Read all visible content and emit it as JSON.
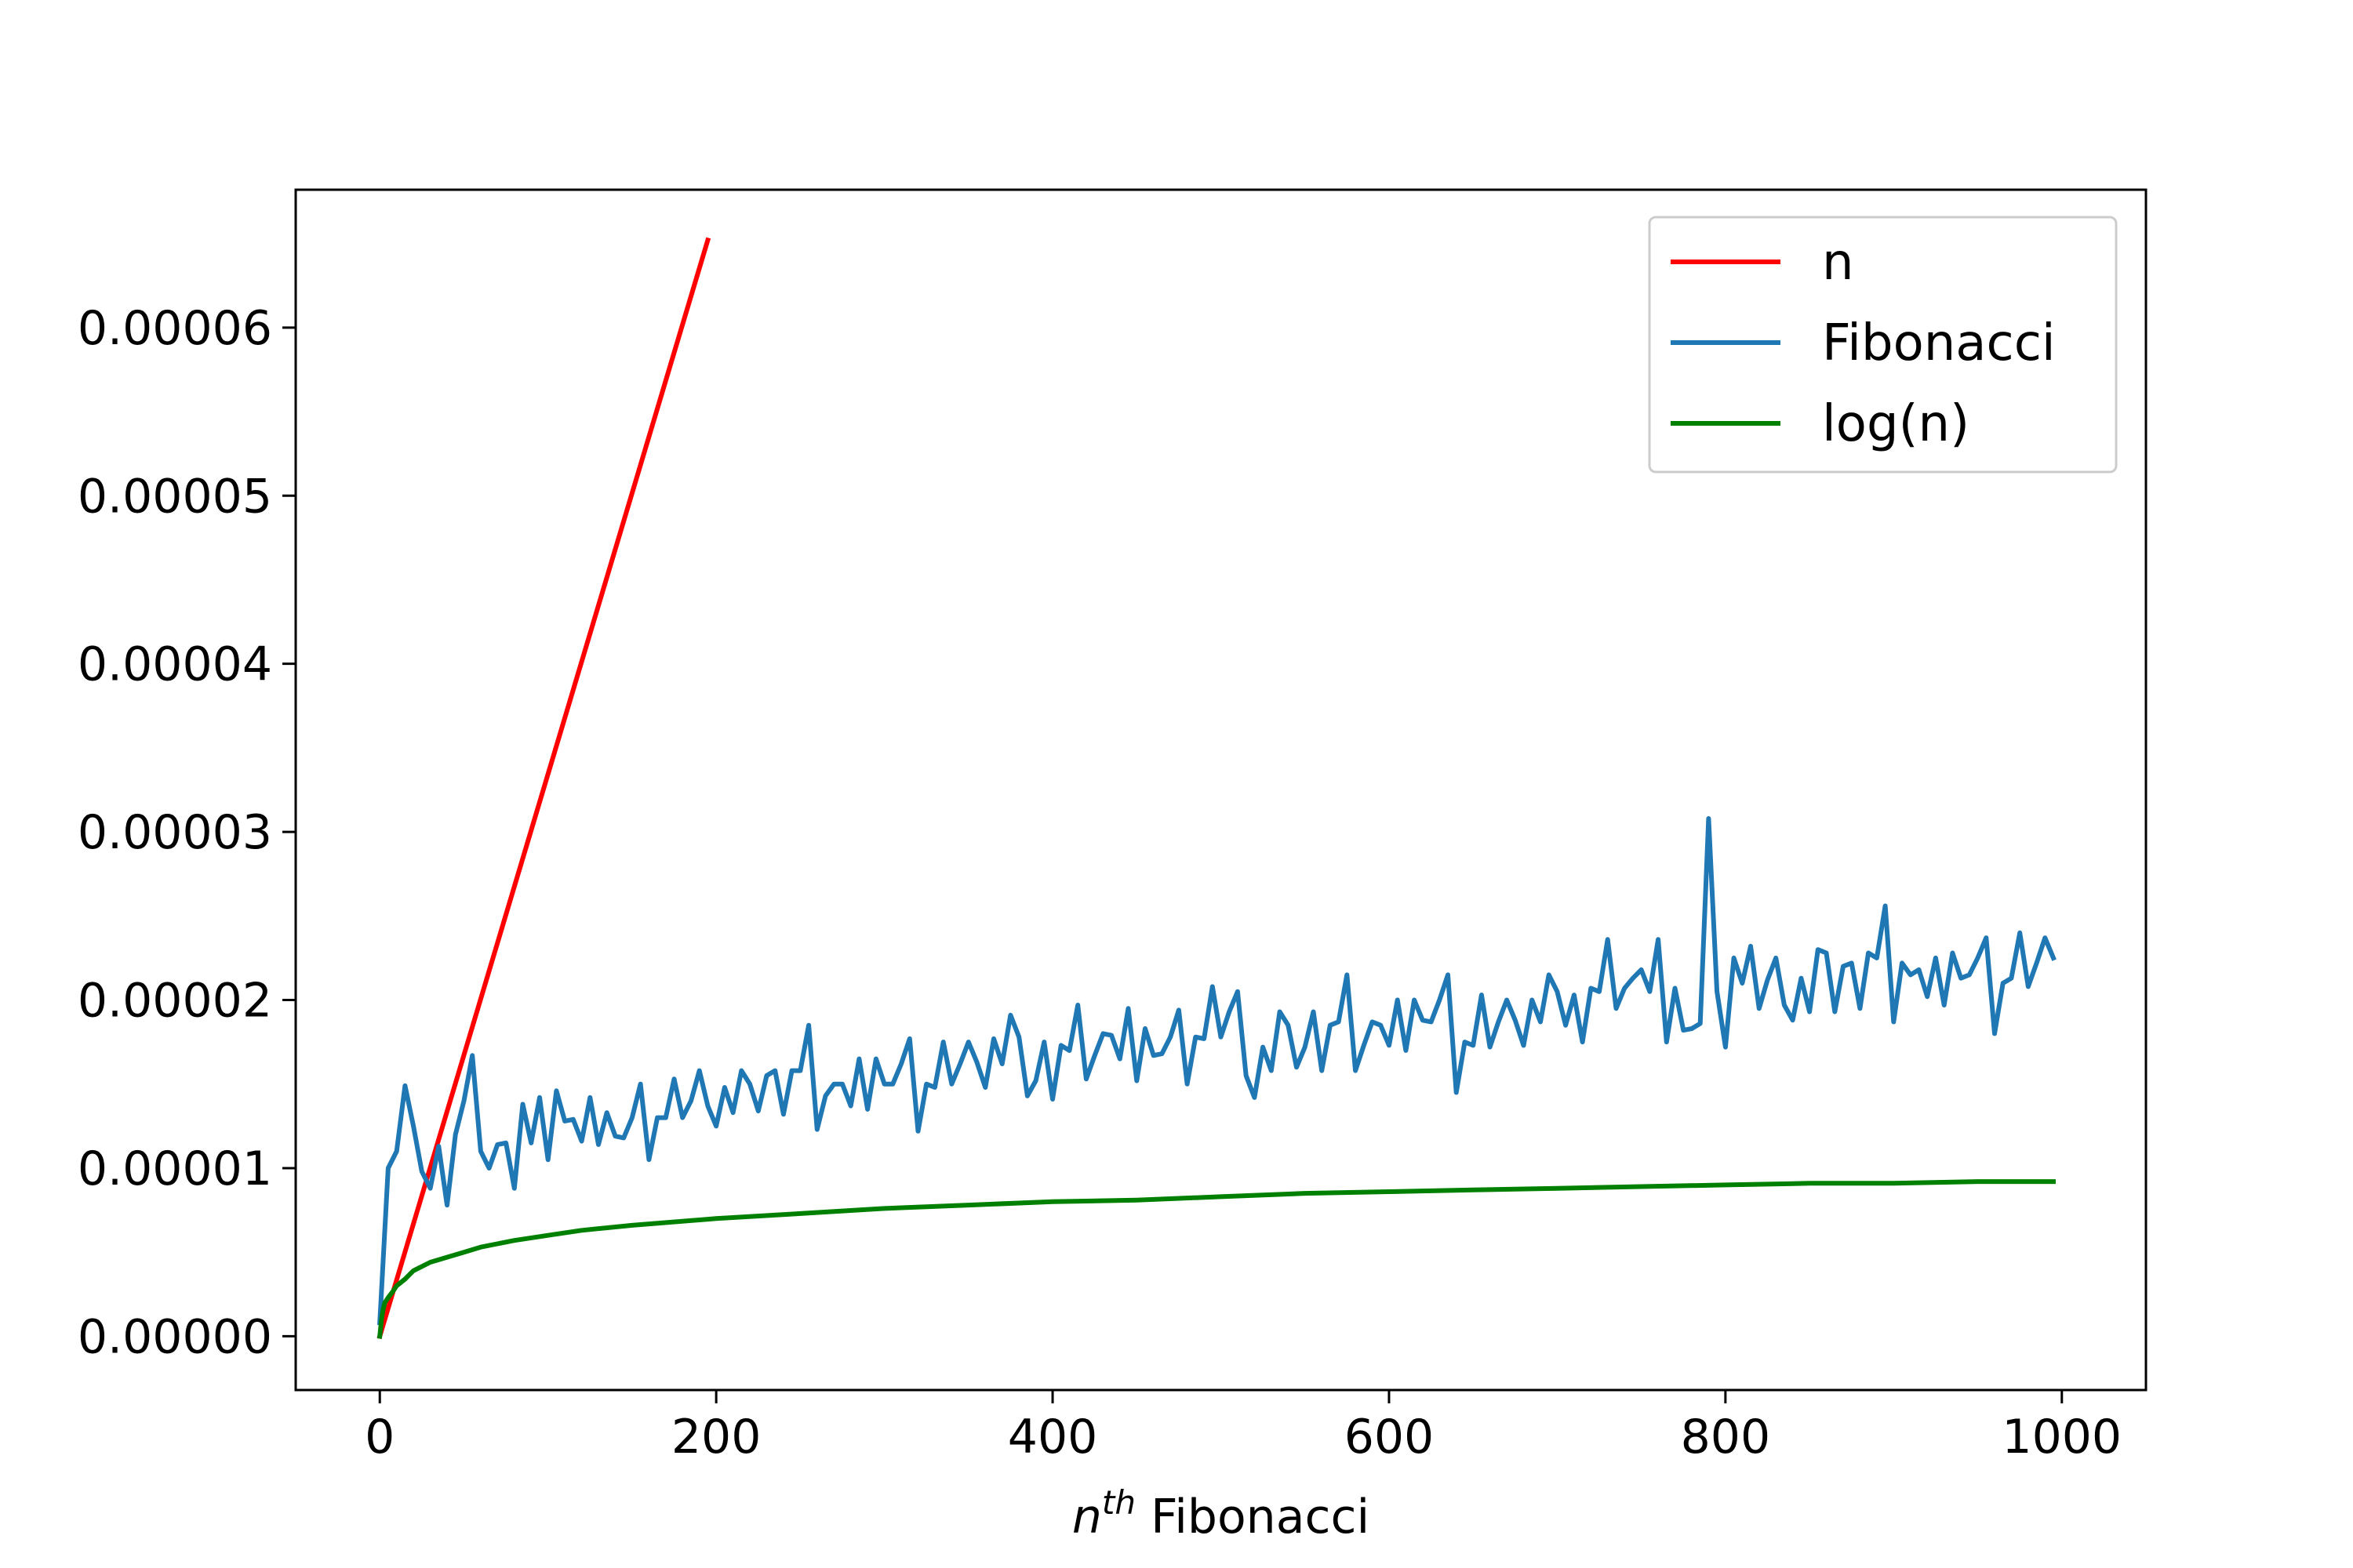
{
  "chart_data": {
    "type": "line",
    "title": "",
    "xlabel": {
      "base": "n",
      "sup": "th",
      "rest": " Fibonacci"
    },
    "ylabel": "",
    "xlim": [
      -50,
      1050
    ],
    "ylim": [
      -3.2e-06,
      6.82e-05
    ],
    "x_ticks": [
      0,
      200,
      400,
      600,
      800,
      1000
    ],
    "x_tick_labels": [
      "0",
      "200",
      "400",
      "600",
      "800",
      "1000"
    ],
    "y_ticks": [
      0,
      1e-05,
      2e-05,
      3e-05,
      4e-05,
      5e-05,
      6e-05
    ],
    "y_tick_labels": [
      "0.00000",
      "0.00001",
      "0.00002",
      "0.00003",
      "0.00004",
      "0.00005",
      "0.00006"
    ],
    "legend_position": "top-right",
    "grid": false,
    "series": [
      {
        "name": "n",
        "color": "#ff0000",
        "x": [
          0,
          195
        ],
        "y": [
          0,
          6.52e-05
        ]
      },
      {
        "name": "Fibonacci",
        "color": "#1f77b4",
        "x": [
          0,
          5,
          10,
          15,
          20,
          25,
          30,
          35,
          40,
          45,
          50,
          55,
          60,
          65,
          70,
          75,
          80,
          85,
          90,
          95,
          100,
          105,
          110,
          115,
          120,
          125,
          130,
          135,
          140,
          145,
          150,
          155,
          160,
          165,
          170,
          175,
          180,
          185,
          190,
          195,
          200,
          205,
          210,
          215,
          220,
          225,
          230,
          235,
          240,
          245,
          250,
          255,
          260,
          265,
          270,
          275,
          280,
          285,
          290,
          295,
          300,
          305,
          310,
          315,
          320,
          325,
          330,
          335,
          340,
          345,
          350,
          355,
          360,
          365,
          370,
          375,
          380,
          385,
          390,
          395,
          400,
          405,
          410,
          415,
          420,
          425,
          430,
          435,
          440,
          445,
          450,
          455,
          460,
          465,
          470,
          475,
          480,
          485,
          490,
          495,
          500,
          505,
          510,
          515,
          520,
          525,
          530,
          535,
          540,
          545,
          550,
          555,
          560,
          565,
          570,
          575,
          580,
          585,
          590,
          595,
          600,
          605,
          610,
          615,
          620,
          625,
          630,
          635,
          640,
          645,
          650,
          655,
          660,
          665,
          670,
          675,
          680,
          685,
          690,
          695,
          700,
          705,
          710,
          715,
          720,
          725,
          730,
          735,
          740,
          745,
          750,
          755,
          760,
          765,
          770,
          775,
          780,
          785,
          790,
          795,
          800,
          805,
          810,
          815,
          820,
          825,
          830,
          835,
          840,
          845,
          850,
          855,
          860,
          865,
          870,
          875,
          880,
          885,
          890,
          895,
          900,
          905,
          910,
          915,
          920,
          925,
          930,
          935,
          940,
          945,
          950,
          955,
          960,
          965,
          970,
          975,
          980,
          985,
          990,
          995
        ],
        "y": [
          8e-07,
          1e-05,
          1.1e-05,
          1.49e-05,
          1.25e-05,
          9.8e-06,
          8.8e-06,
          1.13e-05,
          7.8e-06,
          1.2e-05,
          1.4e-05,
          1.67e-05,
          1.1e-05,
          1e-05,
          1.14e-05,
          1.15e-05,
          8.8e-06,
          1.38e-05,
          1.15e-05,
          1.42e-05,
          1.05e-05,
          1.46e-05,
          1.28e-05,
          1.29e-05,
          1.16e-05,
          1.42e-05,
          1.14e-05,
          1.33e-05,
          1.19e-05,
          1.18e-05,
          1.3e-05,
          1.5e-05,
          1.05e-05,
          1.3e-05,
          1.3e-05,
          1.53e-05,
          1.3e-05,
          1.4e-05,
          1.58e-05,
          1.37e-05,
          1.25e-05,
          1.48e-05,
          1.33e-05,
          1.58e-05,
          1.5e-05,
          1.34e-05,
          1.55e-05,
          1.58e-05,
          1.32e-05,
          1.58e-05,
          1.58e-05,
          1.85e-05,
          1.23e-05,
          1.43e-05,
          1.5e-05,
          1.5e-05,
          1.37e-05,
          1.65e-05,
          1.35e-05,
          1.65e-05,
          1.5e-05,
          1.5e-05,
          1.62e-05,
          1.77e-05,
          1.22e-05,
          1.5e-05,
          1.48e-05,
          1.75e-05,
          1.5e-05,
          1.62e-05,
          1.75e-05,
          1.63e-05,
          1.48e-05,
          1.77e-05,
          1.62e-05,
          1.91e-05,
          1.78e-05,
          1.43e-05,
          1.52e-05,
          1.75e-05,
          1.41e-05,
          1.73e-05,
          1.7e-05,
          1.97e-05,
          1.53e-05,
          1.67e-05,
          1.8e-05,
          1.79e-05,
          1.65e-05,
          1.95e-05,
          1.52e-05,
          1.83e-05,
          1.67e-05,
          1.68e-05,
          1.78e-05,
          1.94e-05,
          1.5e-05,
          1.78e-05,
          1.77e-05,
          2.08e-05,
          1.78e-05,
          1.93e-05,
          2.05e-05,
          1.55e-05,
          1.42e-05,
          1.72e-05,
          1.58e-05,
          1.93e-05,
          1.85e-05,
          1.6e-05,
          1.72e-05,
          1.93e-05,
          1.58e-05,
          1.85e-05,
          1.87e-05,
          2.15e-05,
          1.58e-05,
          1.73e-05,
          1.87e-05,
          1.85e-05,
          1.73e-05,
          2e-05,
          1.7e-05,
          2e-05,
          1.88e-05,
          1.87e-05,
          2e-05,
          2.15e-05,
          1.45e-05,
          1.75e-05,
          1.73e-05,
          2.03e-05,
          1.72e-05,
          1.87e-05,
          2e-05,
          1.88e-05,
          1.73e-05,
          2e-05,
          1.87e-05,
          2.15e-05,
          2.05e-05,
          1.85e-05,
          2.03e-05,
          1.75e-05,
          2.07e-05,
          2.05e-05,
          2.36e-05,
          1.95e-05,
          2.07e-05,
          2.13e-05,
          2.18e-05,
          2.05e-05,
          2.36e-05,
          1.75e-05,
          2.07e-05,
          1.82e-05,
          1.83e-05,
          1.86e-05,
          3.08e-05,
          2.05e-05,
          1.72e-05,
          2.25e-05,
          2.1e-05,
          2.32e-05,
          1.95e-05,
          2.12e-05,
          2.25e-05,
          1.97e-05,
          1.88e-05,
          2.13e-05,
          1.93e-05,
          2.3e-05,
          2.28e-05,
          1.93e-05,
          2.2e-05,
          2.22e-05,
          1.95e-05,
          2.28e-05,
          2.25e-05,
          2.56e-05,
          1.87e-05,
          2.22e-05,
          2.15e-05,
          2.18e-05,
          2.02e-05,
          2.25e-05,
          1.97e-05,
          2.28e-05,
          2.13e-05,
          2.15e-05,
          2.25e-05,
          2.37e-05,
          1.8e-05,
          2.1e-05,
          2.13e-05,
          2.4e-05,
          2.08e-05,
          2.22e-05,
          2.37e-05,
          2.25e-05
        ]
      },
      {
        "name": "log(n)",
        "color": "#008000",
        "x": [
          0,
          1,
          2,
          3,
          5,
          8,
          10,
          15,
          20,
          30,
          40,
          50,
          60,
          80,
          100,
          120,
          150,
          200,
          250,
          300,
          350,
          400,
          450,
          500,
          550,
          600,
          650,
          700,
          750,
          800,
          850,
          900,
          950,
          995
        ],
        "y": [
          0,
          1e-06,
          1.6e-06,
          2e-06,
          2.3e-06,
          2.7e-06,
          3e-06,
          3.4e-06,
          3.9e-06,
          4.4e-06,
          4.7e-06,
          5e-06,
          5.3e-06,
          5.7e-06,
          6e-06,
          6.3e-06,
          6.6e-06,
          7e-06,
          7.3e-06,
          7.6e-06,
          7.8e-06,
          8e-06,
          8.1e-06,
          8.3e-06,
          8.5e-06,
          8.6e-06,
          8.7e-06,
          8.8e-06,
          8.9e-06,
          9e-06,
          9.1e-06,
          9.1e-06,
          9.2e-06,
          9.2e-06
        ]
      }
    ]
  }
}
